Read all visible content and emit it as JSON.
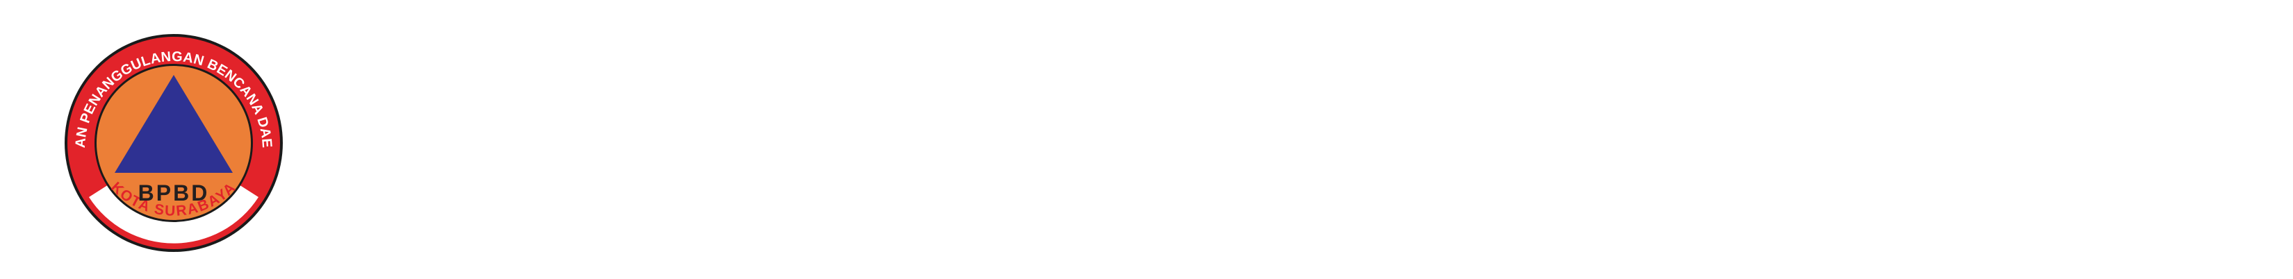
{
  "logo": {
    "arc_top_text": "BADAN PENANGGULANGAN BENCANA DAERAH",
    "arc_bottom_text": "KOTA SURABAYA",
    "center_text": "BPBD",
    "colors": {
      "outer_ring": "#e2232a",
      "bottom_band": "#ffffff",
      "inner_disc": "#ec7f37",
      "triangle": "#2e3192",
      "center_text": "#231f20",
      "arc_top_text": "#ffffff",
      "arc_bottom_text": "#e2232a",
      "background": "#ffffff"
    }
  }
}
